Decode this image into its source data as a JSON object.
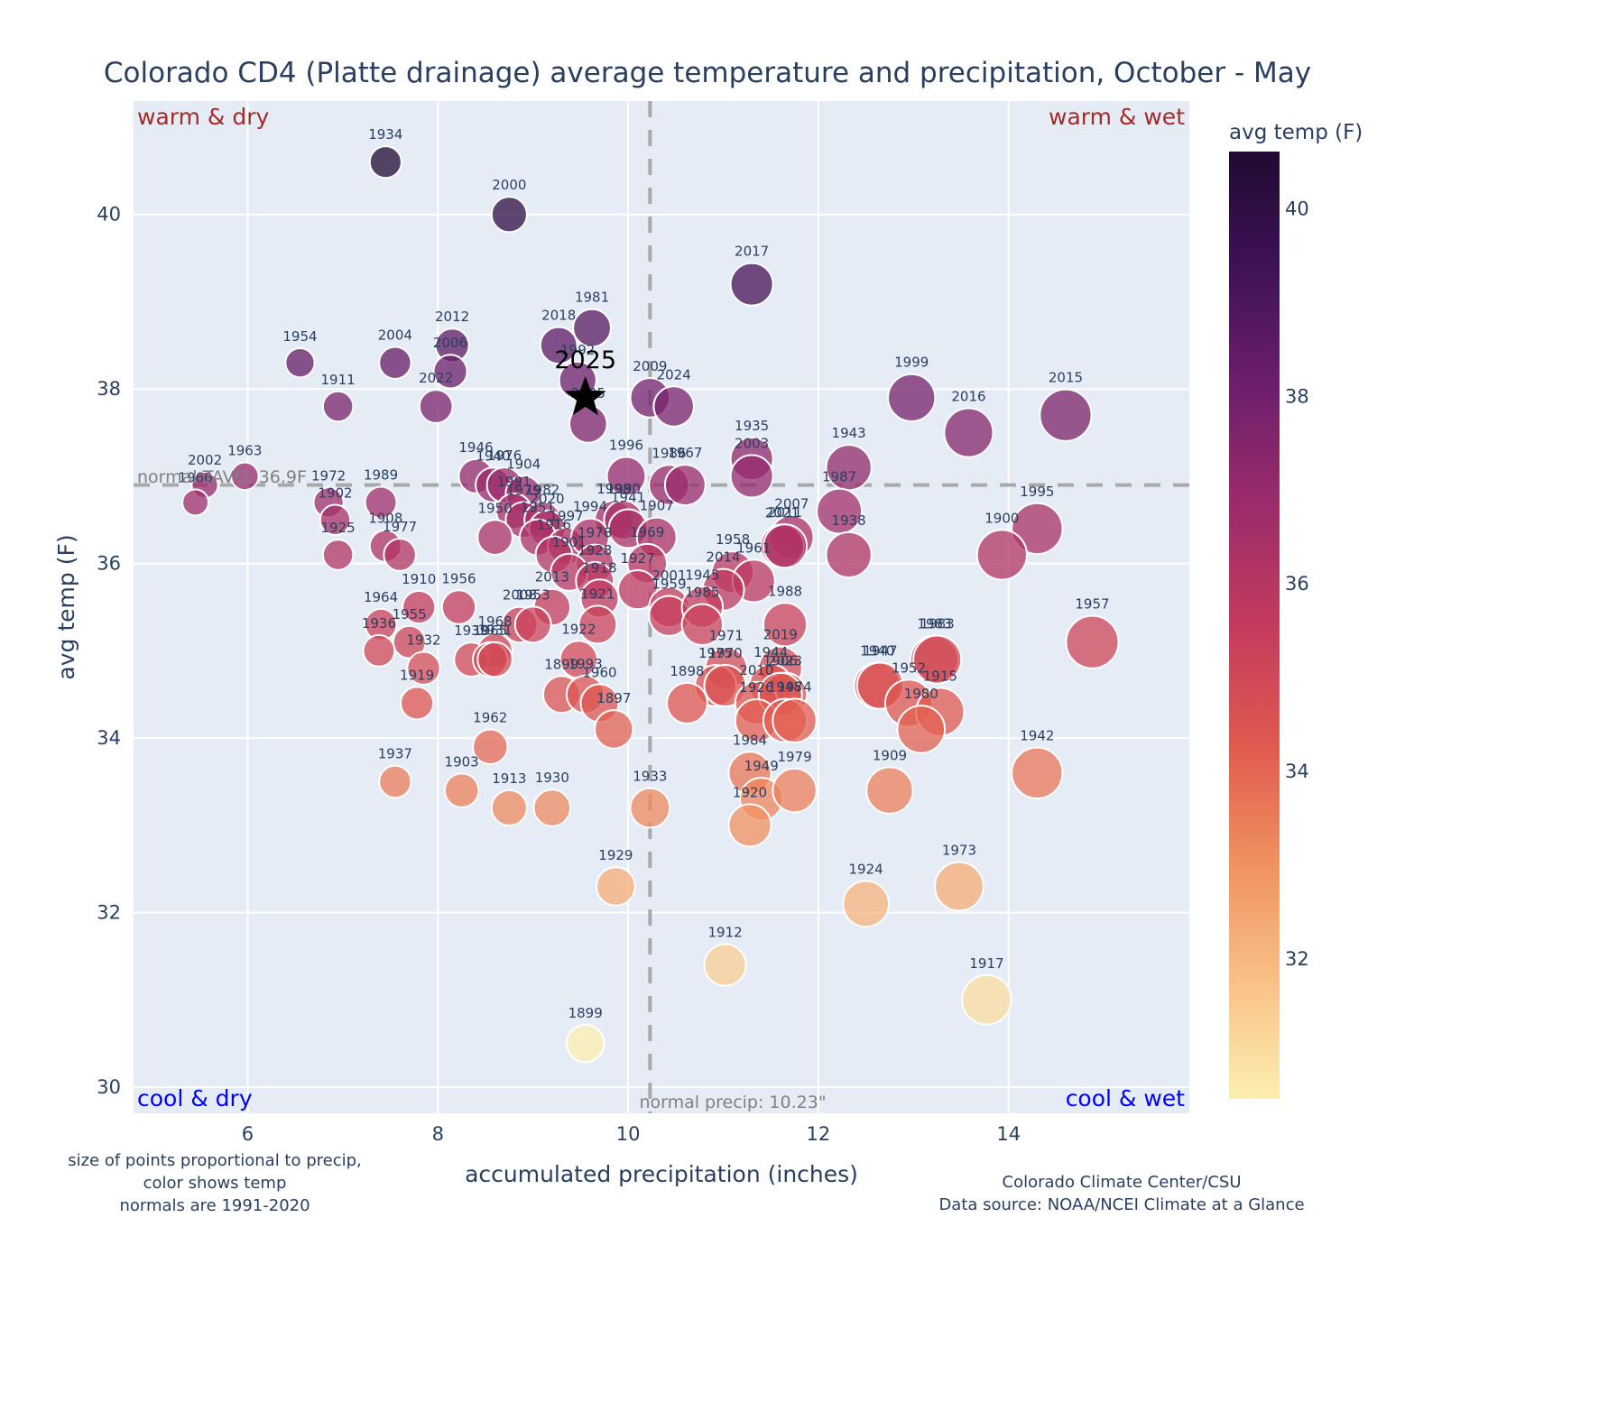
{
  "chart_data": {
    "type": "scatter",
    "title": "Colorado CD4 (Platte drainage) average temperature and precipitation, October - May",
    "xlabel": "accumulated precipitation (inches)",
    "ylabel": "avg temp (F)",
    "xlim": [
      4.8,
      15.9
    ],
    "ylim": [
      29.7,
      41.3
    ],
    "xticks": [
      6,
      8,
      10,
      12,
      14
    ],
    "yticks": [
      30,
      32,
      34,
      36,
      38,
      40
    ],
    "grid": true,
    "colorbar": {
      "title": "avg temp (F)",
      "range": [
        30.5,
        40.6
      ],
      "ticks": [
        32,
        34,
        36,
        38,
        40
      ],
      "colorscale": [
        "#fcefb0",
        "#f9c086",
        "#f0915f",
        "#e0594f",
        "#c33b5d",
        "#9c2c6b",
        "#6e1f6b",
        "#3f1256",
        "#200a33"
      ]
    },
    "size_encoding": "precip",
    "reference_lines": {
      "normal_temp": {
        "value": 36.9,
        "label": "normal TAVG: 36.9F"
      },
      "normal_precip": {
        "value": 10.23,
        "label": "normal precip: 10.23\""
      }
    },
    "quadrant_labels": {
      "top_left": "warm & dry",
      "top_right": "warm & wet",
      "bottom_left": "cool & dry",
      "bottom_right": "cool & wet"
    },
    "highlight": {
      "year": "2025",
      "precip": 9.55,
      "temp": 37.9,
      "marker": "star"
    },
    "points": [
      {
        "year": "1934",
        "precip": 7.45,
        "temp": 40.6
      },
      {
        "year": "2000",
        "precip": 8.75,
        "temp": 40.0
      },
      {
        "year": "2017",
        "precip": 11.3,
        "temp": 39.2
      },
      {
        "year": "1981",
        "precip": 9.62,
        "temp": 38.7
      },
      {
        "year": "2018",
        "precip": 9.27,
        "temp": 38.5
      },
      {
        "year": "2012",
        "precip": 8.15,
        "temp": 38.5
      },
      {
        "year": "2006",
        "precip": 8.13,
        "temp": 38.2
      },
      {
        "year": "1954",
        "precip": 6.55,
        "temp": 38.3
      },
      {
        "year": "2004",
        "precip": 7.55,
        "temp": 38.3
      },
      {
        "year": "1992",
        "precip": 9.47,
        "temp": 38.1
      },
      {
        "year": "2022",
        "precip": 7.98,
        "temp": 37.8
      },
      {
        "year": "1911",
        "precip": 6.95,
        "temp": 37.8
      },
      {
        "year": "2005",
        "precip": 9.58,
        "temp": 37.6
      },
      {
        "year": "2009",
        "precip": 10.23,
        "temp": 37.9
      },
      {
        "year": "2024",
        "precip": 10.48,
        "temp": 37.8
      },
      {
        "year": "1999",
        "precip": 12.98,
        "temp": 37.9
      },
      {
        "year": "2016",
        "precip": 13.58,
        "temp": 37.5
      },
      {
        "year": "2015",
        "precip": 14.6,
        "temp": 37.7
      },
      {
        "year": "1935",
        "precip": 11.3,
        "temp": 37.2
      },
      {
        "year": "2003",
        "precip": 11.3,
        "temp": 37.0
      },
      {
        "year": "1943",
        "precip": 12.32,
        "temp": 37.1
      },
      {
        "year": "2002",
        "precip": 5.55,
        "temp": 36.9
      },
      {
        "year": "1966",
        "precip": 5.45,
        "temp": 36.7
      },
      {
        "year": "1963",
        "precip": 5.97,
        "temp": 37.0
      },
      {
        "year": "1972",
        "precip": 6.85,
        "temp": 36.7
      },
      {
        "year": "1902",
        "precip": 6.92,
        "temp": 36.5
      },
      {
        "year": "1989",
        "precip": 7.4,
        "temp": 36.7
      },
      {
        "year": "1925",
        "precip": 6.95,
        "temp": 36.1
      },
      {
        "year": "1908",
        "precip": 7.45,
        "temp": 36.2
      },
      {
        "year": "1977",
        "precip": 7.6,
        "temp": 36.1
      },
      {
        "year": "1946",
        "precip": 8.4,
        "temp": 37.0
      },
      {
        "year": "1940",
        "precip": 8.58,
        "temp": 36.9
      },
      {
        "year": "1976",
        "precip": 8.7,
        "temp": 36.9
      },
      {
        "year": "1904",
        "precip": 8.9,
        "temp": 36.8
      },
      {
        "year": "1991",
        "precip": 8.8,
        "temp": 36.6
      },
      {
        "year": "1979",
        "precip": 8.9,
        "temp": 36.5
      },
      {
        "year": "1982",
        "precip": 9.1,
        "temp": 36.5
      },
      {
        "year": "1950",
        "precip": 8.6,
        "temp": 36.3
      },
      {
        "year": "2020",
        "precip": 9.15,
        "temp": 36.4
      },
      {
        "year": "1951",
        "precip": 9.05,
        "temp": 36.3
      },
      {
        "year": "1997",
        "precip": 9.35,
        "temp": 36.2
      },
      {
        "year": "1916",
        "precip": 9.22,
        "temp": 36.1
      },
      {
        "year": "1996",
        "precip": 9.98,
        "temp": 37.0
      },
      {
        "year": "1998",
        "precip": 9.85,
        "temp": 36.5
      },
      {
        "year": "1994",
        "precip": 9.6,
        "temp": 36.3
      },
      {
        "year": "1990",
        "precip": 9.95,
        "temp": 36.5
      },
      {
        "year": "1941",
        "precip": 10.0,
        "temp": 36.4
      },
      {
        "year": "1907",
        "precip": 10.3,
        "temp": 36.3
      },
      {
        "year": "1986",
        "precip": 10.43,
        "temp": 36.9
      },
      {
        "year": "1967",
        "precip": 10.6,
        "temp": 36.9
      },
      {
        "year": "1987",
        "precip": 12.22,
        "temp": 36.6
      },
      {
        "year": "1938",
        "precip": 12.32,
        "temp": 36.1
      },
      {
        "year": "2007",
        "precip": 11.72,
        "temp": 36.3
      },
      {
        "year": "2021",
        "precip": 11.62,
        "temp": 36.2
      },
      {
        "year": "2011",
        "precip": 11.65,
        "temp": 36.2
      },
      {
        "year": "1995",
        "precip": 14.3,
        "temp": 36.4
      },
      {
        "year": "1900",
        "precip": 13.93,
        "temp": 36.1
      },
      {
        "year": "1978",
        "precip": 9.65,
        "temp": 36.0
      },
      {
        "year": "1969",
        "precip": 10.2,
        "temp": 36.0
      },
      {
        "year": "1927",
        "precip": 10.1,
        "temp": 35.7
      },
      {
        "year": "1901",
        "precip": 9.38,
        "temp": 35.9
      },
      {
        "year": "1928",
        "precip": 9.65,
        "temp": 35.8
      },
      {
        "year": "2013",
        "precip": 9.2,
        "temp": 35.5
      },
      {
        "year": "1918",
        "precip": 9.7,
        "temp": 35.6
      },
      {
        "year": "1921",
        "precip": 9.68,
        "temp": 35.3
      },
      {
        "year": "1958",
        "precip": 11.1,
        "temp": 35.9
      },
      {
        "year": "1961",
        "precip": 11.32,
        "temp": 35.8
      },
      {
        "year": "2014",
        "precip": 11.0,
        "temp": 35.7
      },
      {
        "year": "2001",
        "precip": 10.43,
        "temp": 35.5
      },
      {
        "year": "1959",
        "precip": 10.43,
        "temp": 35.4
      },
      {
        "year": "1945",
        "precip": 10.78,
        "temp": 35.5
      },
      {
        "year": "1985",
        "precip": 10.78,
        "temp": 35.3
      },
      {
        "year": "1988",
        "precip": 11.65,
        "temp": 35.3
      },
      {
        "year": "1910",
        "precip": 7.8,
        "temp": 35.5
      },
      {
        "year": "1956",
        "precip": 8.22,
        "temp": 35.5
      },
      {
        "year": "1964",
        "precip": 7.4,
        "temp": 35.3
      },
      {
        "year": "1955",
        "precip": 7.7,
        "temp": 35.1
      },
      {
        "year": "1936",
        "precip": 7.38,
        "temp": 35.0
      },
      {
        "year": "1932",
        "precip": 7.85,
        "temp": 34.8
      },
      {
        "year": "2008",
        "precip": 8.86,
        "temp": 35.3
      },
      {
        "year": "1953",
        "precip": 9.0,
        "temp": 35.3
      },
      {
        "year": "1968",
        "precip": 8.6,
        "temp": 35.0
      },
      {
        "year": "1939",
        "precip": 8.35,
        "temp": 34.9
      },
      {
        "year": "1965",
        "precip": 8.55,
        "temp": 34.9
      },
      {
        "year": "1931",
        "precip": 8.6,
        "temp": 34.9
      },
      {
        "year": "1922",
        "precip": 9.48,
        "temp": 34.9
      },
      {
        "year": "1899",
        "precip": 9.3,
        "temp": 34.5
      },
      {
        "year": "1993",
        "precip": 9.55,
        "temp": 34.5
      },
      {
        "year": "1960",
        "precip": 9.7,
        "temp": 34.4
      },
      {
        "year": "1897",
        "precip": 9.85,
        "temp": 34.1
      },
      {
        "year": "1919",
        "precip": 7.78,
        "temp": 34.4
      },
      {
        "year": "1971",
        "precip": 11.03,
        "temp": 34.8
      },
      {
        "year": "2019",
        "precip": 11.6,
        "temp": 34.8
      },
      {
        "year": "1944",
        "precip": 11.5,
        "temp": 34.6
      },
      {
        "year": "1975",
        "precip": 10.92,
        "temp": 34.6
      },
      {
        "year": "1970",
        "precip": 11.02,
        "temp": 34.6
      },
      {
        "year": "2023",
        "precip": 11.65,
        "temp": 34.5
      },
      {
        "year": "2010",
        "precip": 11.35,
        "temp": 34.4
      },
      {
        "year": "1906",
        "precip": 11.6,
        "temp": 34.5
      },
      {
        "year": "1926",
        "precip": 11.35,
        "temp": 34.2
      },
      {
        "year": "1948",
        "precip": 11.65,
        "temp": 34.2
      },
      {
        "year": "1974",
        "precip": 11.75,
        "temp": 34.2
      },
      {
        "year": "1898",
        "precip": 10.62,
        "temp": 34.4
      },
      {
        "year": "1940b",
        "precip": 12.62,
        "temp": 34.6
      },
      {
        "year": "1947",
        "precip": 12.65,
        "temp": 34.6
      },
      {
        "year": "1952",
        "precip": 12.95,
        "temp": 34.4
      },
      {
        "year": "1983",
        "precip": 13.22,
        "temp": 34.9
      },
      {
        "year": "1903b",
        "precip": 13.25,
        "temp": 34.9
      },
      {
        "year": "1915",
        "precip": 13.28,
        "temp": 34.3
      },
      {
        "year": "1980",
        "precip": 13.08,
        "temp": 34.1
      },
      {
        "year": "1957",
        "precip": 14.88,
        "temp": 35.1
      },
      {
        "year": "1962",
        "precip": 8.55,
        "temp": 33.9
      },
      {
        "year": "1937",
        "precip": 7.55,
        "temp": 33.5
      },
      {
        "year": "1903",
        "precip": 8.25,
        "temp": 33.4
      },
      {
        "year": "1913",
        "precip": 8.75,
        "temp": 33.2
      },
      {
        "year": "1930",
        "precip": 9.2,
        "temp": 33.2
      },
      {
        "year": "1933",
        "precip": 10.23,
        "temp": 33.2
      },
      {
        "year": "1984",
        "precip": 11.28,
        "temp": 33.6
      },
      {
        "year": "1949",
        "precip": 11.4,
        "temp": 33.3
      },
      {
        "year": "1920",
        "precip": 11.28,
        "temp": 33.0
      },
      {
        "year": "1979b",
        "precip": 11.75,
        "temp": 33.4
      },
      {
        "year": "1909",
        "precip": 12.75,
        "temp": 33.4
      },
      {
        "year": "1942",
        "precip": 14.3,
        "temp": 33.6
      },
      {
        "year": "1929",
        "precip": 9.87,
        "temp": 32.3
      },
      {
        "year": "1924",
        "precip": 12.5,
        "temp": 32.1
      },
      {
        "year": "1973",
        "precip": 13.48,
        "temp": 32.3
      },
      {
        "year": "1912",
        "precip": 11.02,
        "temp": 31.4
      },
      {
        "year": "1917",
        "precip": 13.77,
        "temp": 31.0
      },
      {
        "year": "1899b",
        "precip": 9.55,
        "temp": 30.5
      }
    ],
    "point_labels": {
      "1940b": "1940",
      "1903b": "1983",
      "1979b": "1979",
      "1899b": "1899"
    },
    "notes": {
      "left": [
        "size of points proportional to precip,",
        "color shows temp",
        "normals are 1991-2020"
      ],
      "right": [
        "Colorado Climate Center/CSU",
        "Data source: NOAA/NCEI Climate at a Glance"
      ]
    }
  }
}
